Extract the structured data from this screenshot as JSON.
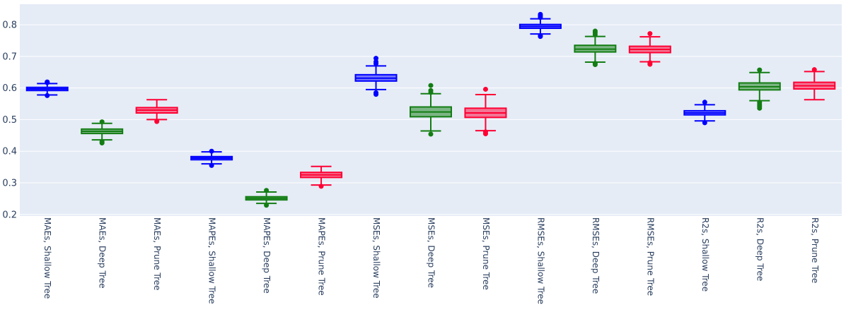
{
  "chart_data": {
    "type": "box",
    "grid": true,
    "legend": "none",
    "ylim": [
      0.195,
      0.865
    ],
    "yticks": [
      "0.2",
      "0.3",
      "0.4",
      "0.5",
      "0.6",
      "0.7",
      "0.8"
    ],
    "colors": {
      "plot_bg": "#e5ecf6",
      "grid": "#ffffff",
      "Shallow Tree": "#0000ff",
      "Deep Tree": "#137d13",
      "Prune Tree": "#ff0033"
    },
    "categories": [
      "MAEs, Shallow Tree",
      "MAEs, Deep Tree",
      "MAEs, Prune Tree",
      "MAPEs, Shallow Tree",
      "MAPEs, Deep Tree",
      "MAPEs, Prune Tree",
      "MSEs, Shallow Tree",
      "MSEs, Deep Tree",
      "MSEs, Prune Tree",
      "RMSEs, Shallow Tree",
      "RMSEs, Deep Tree",
      "RMSEs, Prune Tree",
      "R2s, Shallow Tree",
      "R2s, Deep Tree",
      "R2s, Prune Tree"
    ],
    "boxes": [
      {
        "category": "MAEs, Shallow Tree",
        "group": "Shallow Tree",
        "lower_fence": 0.578,
        "q1": 0.592,
        "median": 0.597,
        "q3": 0.602,
        "upper_fence": 0.614,
        "outliers": [
          0.576,
          0.617,
          0.619
        ]
      },
      {
        "category": "MAEs, Deep Tree",
        "group": "Deep Tree",
        "lower_fence": 0.436,
        "q1": 0.456,
        "median": 0.463,
        "q3": 0.47,
        "upper_fence": 0.488,
        "outliers": [
          0.426,
          0.43,
          0.493
        ]
      },
      {
        "category": "MAEs, Prune Tree",
        "group": "Prune Tree",
        "lower_fence": 0.5,
        "q1": 0.521,
        "median": 0.53,
        "q3": 0.538,
        "upper_fence": 0.563,
        "outliers": [
          0.494
        ]
      },
      {
        "category": "MAPEs, Shallow Tree",
        "group": "Shallow Tree",
        "lower_fence": 0.36,
        "q1": 0.373,
        "median": 0.378,
        "q3": 0.383,
        "upper_fence": 0.398,
        "outliers": [
          0.355,
          0.4
        ]
      },
      {
        "category": "MAPEs, Deep Tree",
        "group": "Deep Tree",
        "lower_fence": 0.235,
        "q1": 0.246,
        "median": 0.251,
        "q3": 0.256,
        "upper_fence": 0.271,
        "outliers": [
          0.229,
          0.276
        ]
      },
      {
        "category": "MAPEs, Prune Tree",
        "group": "Prune Tree",
        "lower_fence": 0.293,
        "q1": 0.317,
        "median": 0.325,
        "q3": 0.333,
        "upper_fence": 0.352,
        "outliers": [
          0.289
        ]
      },
      {
        "category": "MSEs, Shallow Tree",
        "group": "Shallow Tree",
        "lower_fence": 0.595,
        "q1": 0.622,
        "median": 0.631,
        "q3": 0.642,
        "upper_fence": 0.67,
        "outliers": [
          0.58,
          0.585,
          0.677,
          0.683,
          0.694
        ]
      },
      {
        "category": "MSEs, Deep Tree",
        "group": "Deep Tree",
        "lower_fence": 0.464,
        "q1": 0.509,
        "median": 0.524,
        "q3": 0.54,
        "upper_fence": 0.582,
        "outliers": [
          0.454,
          0.586,
          0.592,
          0.608
        ]
      },
      {
        "category": "MSEs, Prune Tree",
        "group": "Prune Tree",
        "lower_fence": 0.465,
        "q1": 0.507,
        "median": 0.521,
        "q3": 0.536,
        "upper_fence": 0.579,
        "outliers": [
          0.455,
          0.461,
          0.596
        ]
      },
      {
        "category": "RMSEs, Shallow Tree",
        "group": "Shallow Tree",
        "lower_fence": 0.771,
        "q1": 0.789,
        "median": 0.795,
        "q3": 0.801,
        "upper_fence": 0.819,
        "outliers": [
          0.763,
          0.766,
          0.823,
          0.828,
          0.833
        ]
      },
      {
        "category": "RMSEs, Deep Tree",
        "group": "Deep Tree",
        "lower_fence": 0.682,
        "q1": 0.714,
        "median": 0.723,
        "q3": 0.735,
        "upper_fence": 0.763,
        "outliers": [
          0.674,
          0.678,
          0.769,
          0.775,
          0.78
        ]
      },
      {
        "category": "RMSEs, Prune Tree",
        "group": "Prune Tree",
        "lower_fence": 0.683,
        "q1": 0.712,
        "median": 0.722,
        "q3": 0.732,
        "upper_fence": 0.762,
        "outliers": [
          0.675,
          0.68,
          0.772
        ]
      },
      {
        "category": "R2s, Shallow Tree",
        "group": "Shallow Tree",
        "lower_fence": 0.496,
        "q1": 0.515,
        "median": 0.521,
        "q3": 0.528,
        "upper_fence": 0.547,
        "outliers": [
          0.49,
          0.555
        ]
      },
      {
        "category": "R2s, Deep Tree",
        "group": "Deep Tree",
        "lower_fence": 0.56,
        "q1": 0.594,
        "median": 0.604,
        "q3": 0.616,
        "upper_fence": 0.649,
        "outliers": [
          0.536,
          0.542,
          0.548,
          0.554,
          0.657
        ]
      },
      {
        "category": "R2s, Prune Tree",
        "group": "Prune Tree",
        "lower_fence": 0.563,
        "q1": 0.597,
        "median": 0.607,
        "q3": 0.618,
        "upper_fence": 0.652,
        "outliers": [
          0.658
        ]
      }
    ]
  }
}
